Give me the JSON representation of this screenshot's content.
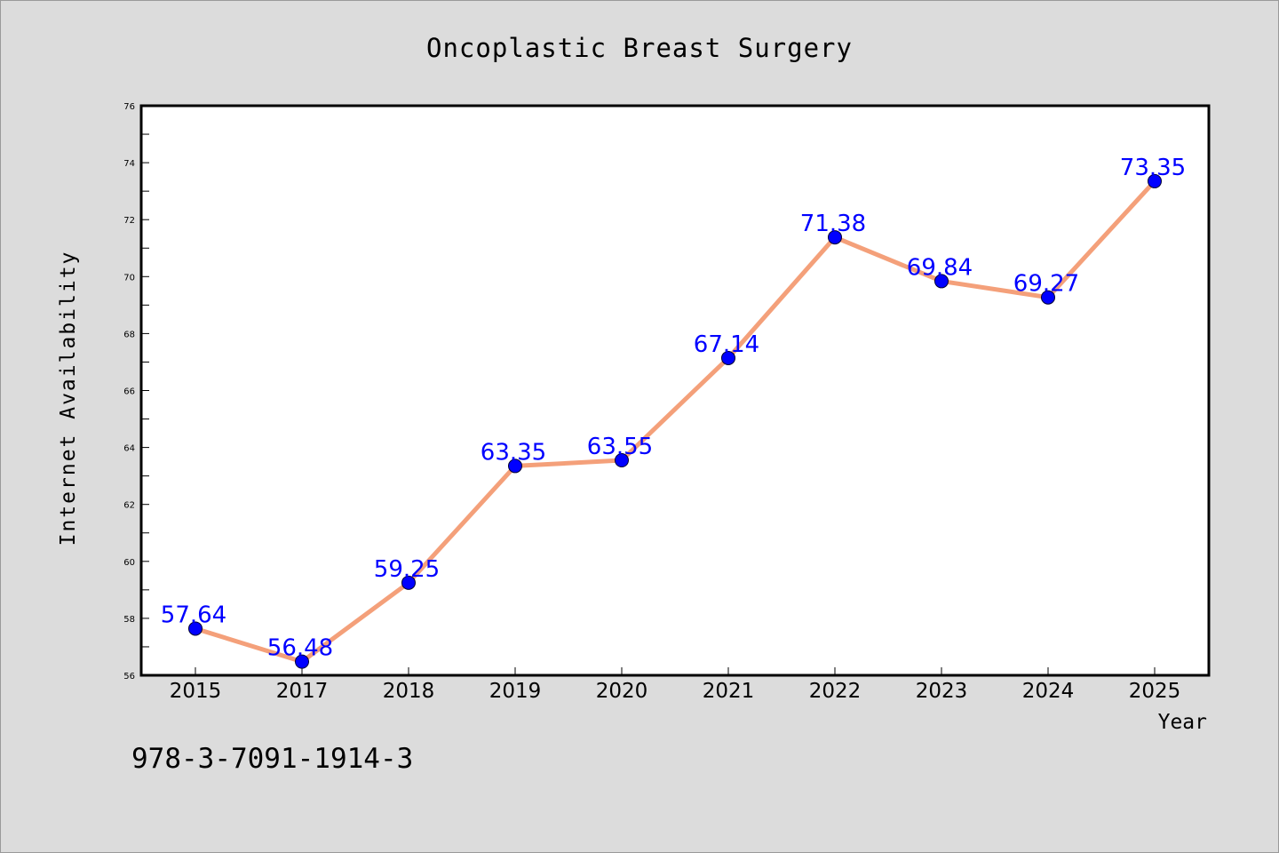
{
  "chart_data": {
    "type": "line",
    "title": "Oncoplastic Breast Surgery",
    "xlabel": "Year",
    "ylabel": "Internet Availability",
    "categories": [
      "2015",
      "2017",
      "2018",
      "2019",
      "2020",
      "2021",
      "2022",
      "2023",
      "2024",
      "2025"
    ],
    "series": [
      {
        "values": [
          57.64,
          56.48,
          59.25,
          63.35,
          63.55,
          67.14,
          71.38,
          69.84,
          69.27,
          73.35
        ],
        "line_color": "#f4a07a",
        "marker_color": "#0000ff"
      }
    ],
    "data_labels": [
      "57.64",
      "56.48",
      "59.25",
      "63.35",
      "63.55",
      "67.14",
      "71.38",
      "69.84",
      "69.27",
      "73.35"
    ],
    "ylim": [
      56,
      76
    ],
    "yticks": [
      56,
      58,
      60,
      62,
      64,
      66,
      68,
      70,
      72,
      74,
      76
    ],
    "grid": false,
    "legend": "none"
  },
  "footer_text": "978-3-7091-1914-3",
  "colors": {
    "background": "#dcdcdc",
    "plot_background": "#ffffff",
    "axis": "#000000",
    "data_label": "#0000ff"
  }
}
